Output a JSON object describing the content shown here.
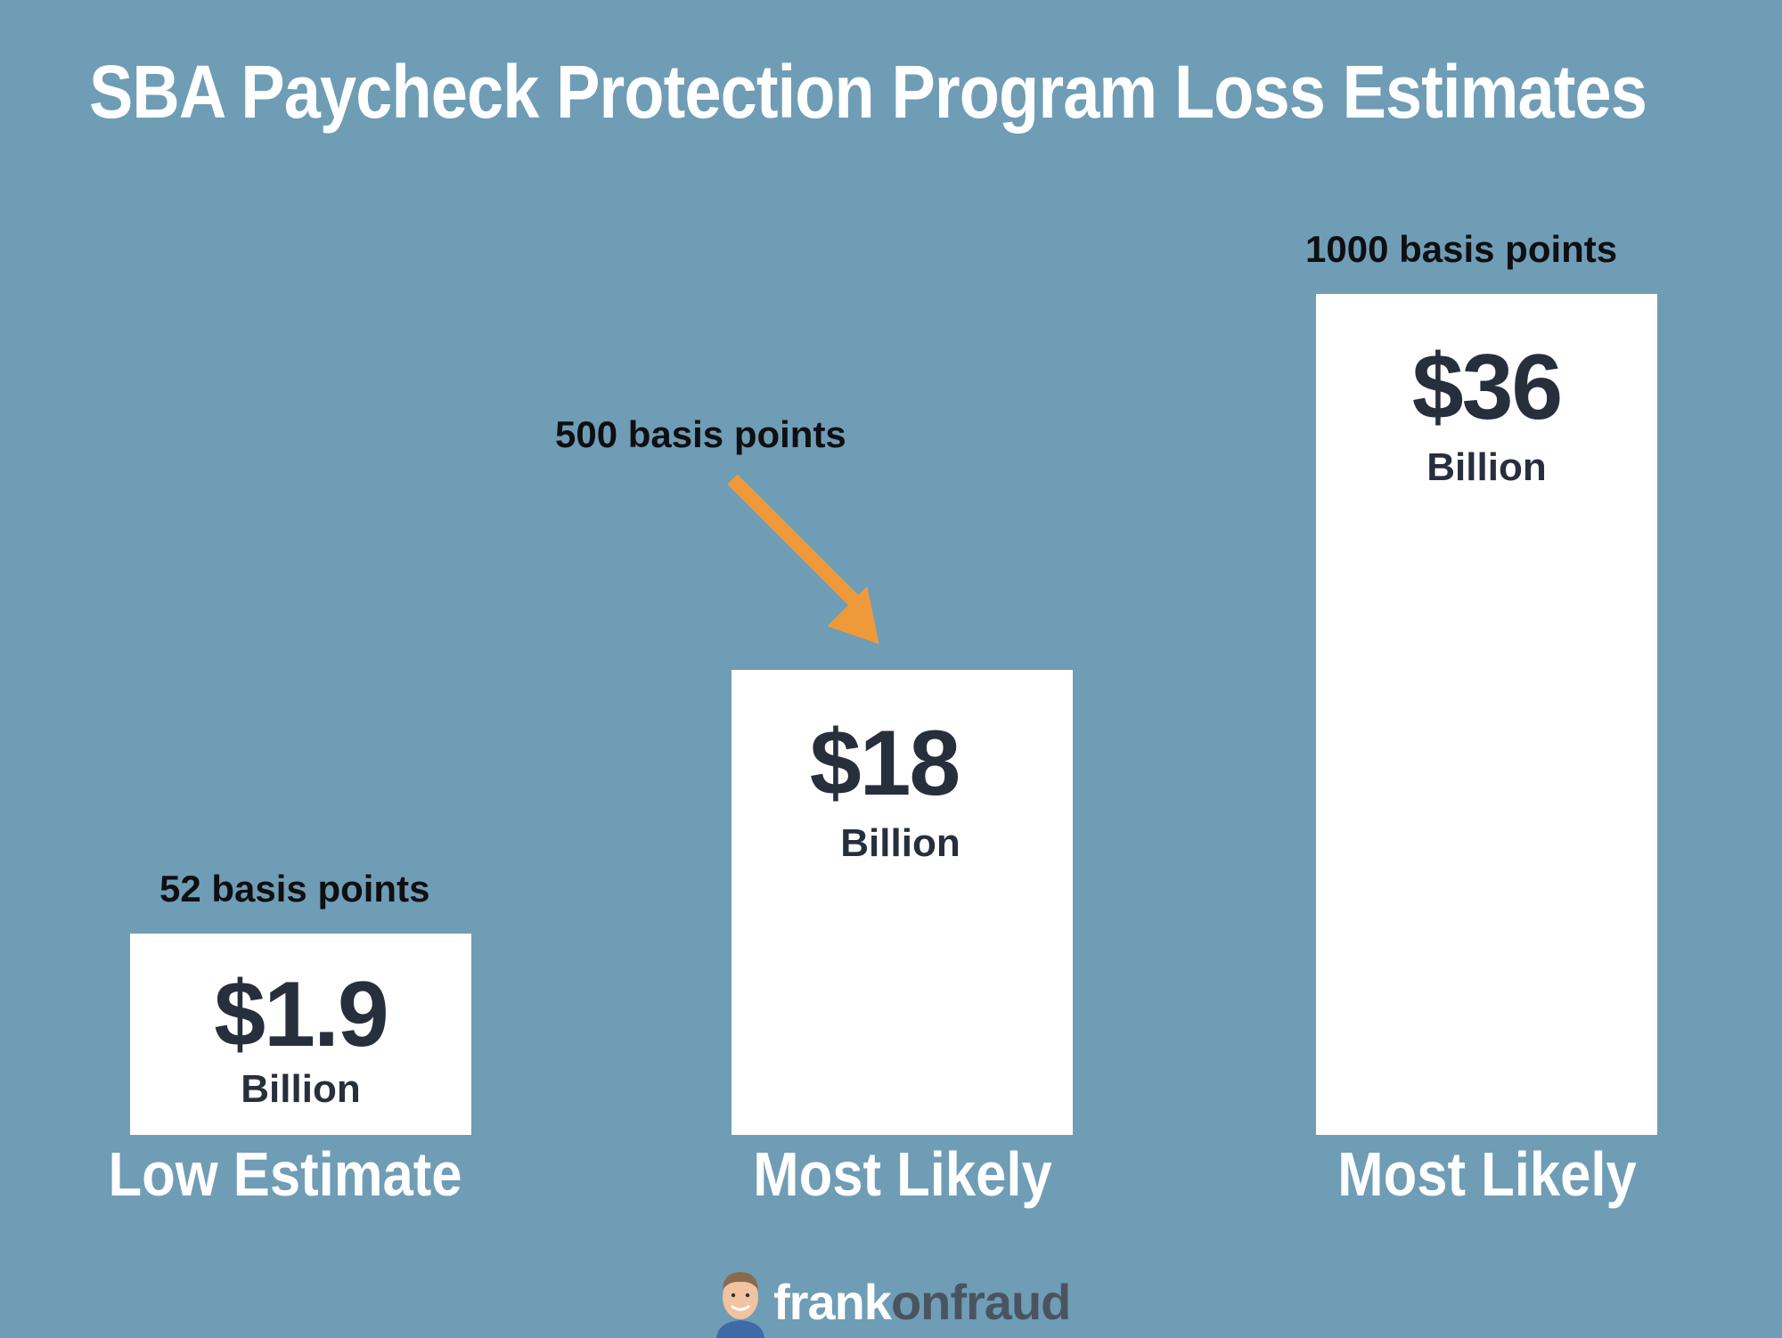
{
  "chart_data": {
    "type": "bar",
    "title": "SBA Paycheck Protection Program Loss Estimates",
    "categories": [
      "Low Estimate",
      "Most Likely",
      "Most Likely"
    ],
    "values": [
      1.9,
      18,
      36
    ],
    "value_labels": [
      "$1.9",
      "$18",
      "$36"
    ],
    "unit_label": "Billion",
    "annotations": [
      "52 basis points",
      "500 basis points",
      "1000 basis points"
    ],
    "ylim": [
      0,
      40
    ],
    "grid": false,
    "legend": "none",
    "colors": {
      "background": "#6f9db5",
      "bar": "#ffffff",
      "value_text": "#272f3d",
      "arrow": "#ef9a3a"
    }
  },
  "logo": {
    "part1": "frank",
    "part2": "onfraud"
  }
}
